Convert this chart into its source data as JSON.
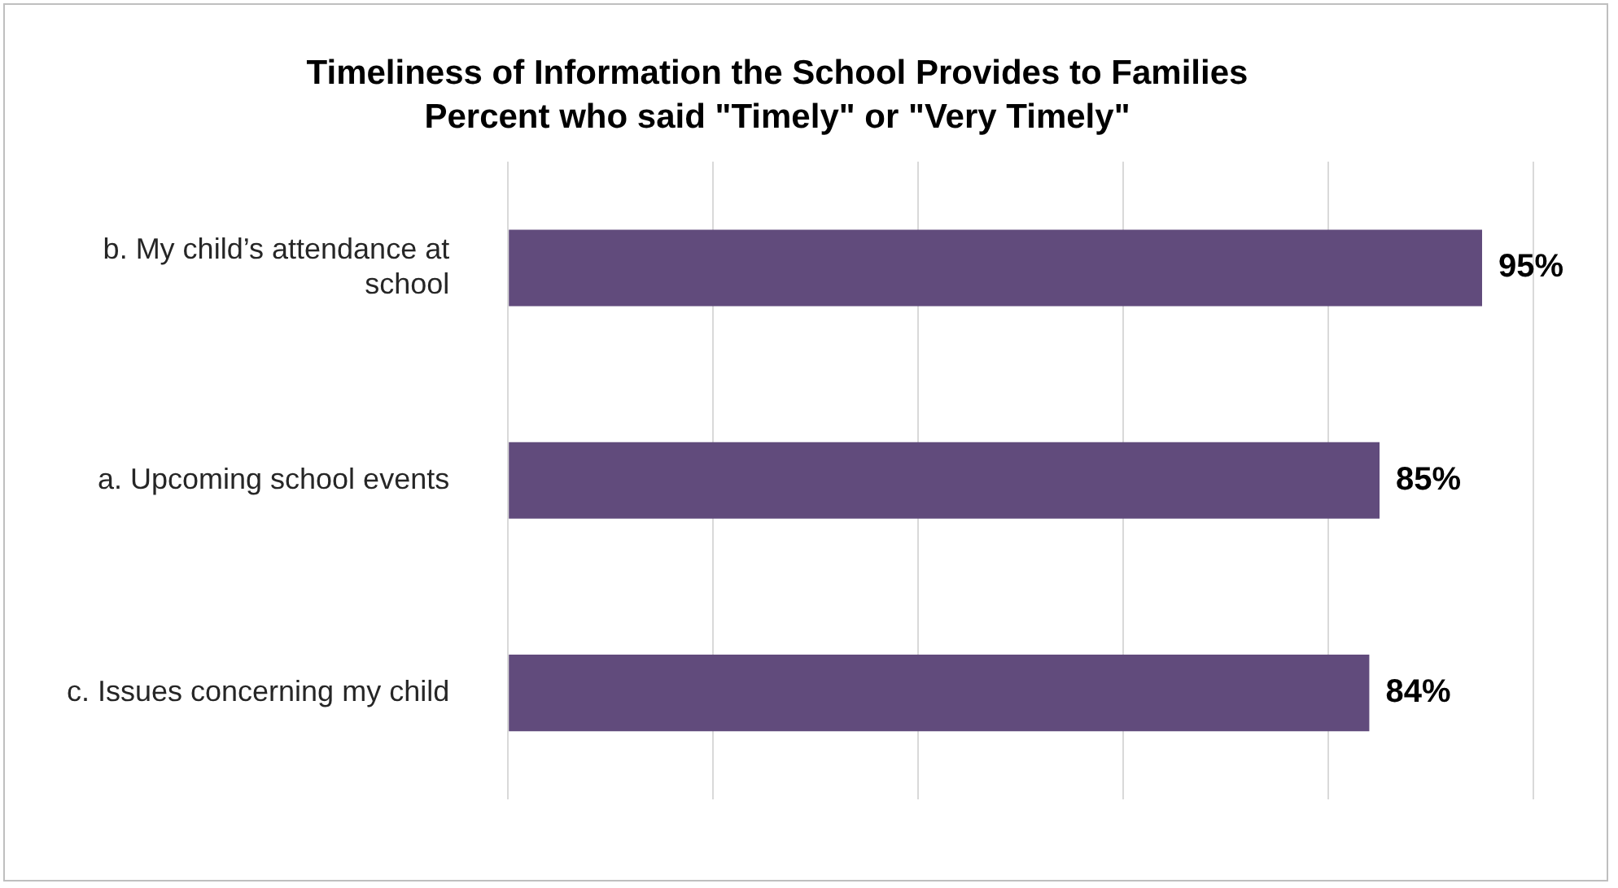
{
  "chart_data": {
    "type": "bar",
    "orientation": "horizontal",
    "title": "Timeliness of Information the School Provides to Families",
    "subtitle": "Percent who said \"Timely\" or \"Very Timely\"",
    "categories": [
      "b. My child’s attendance at school",
      "a. Upcoming school events",
      "c. Issues concerning my child"
    ],
    "values": [
      95,
      85,
      84
    ],
    "value_labels": [
      "95%",
      "85%",
      "84%"
    ],
    "color": "#614b7c",
    "tick_labels": "y",
    "grid": "x",
    "legend": false
  }
}
